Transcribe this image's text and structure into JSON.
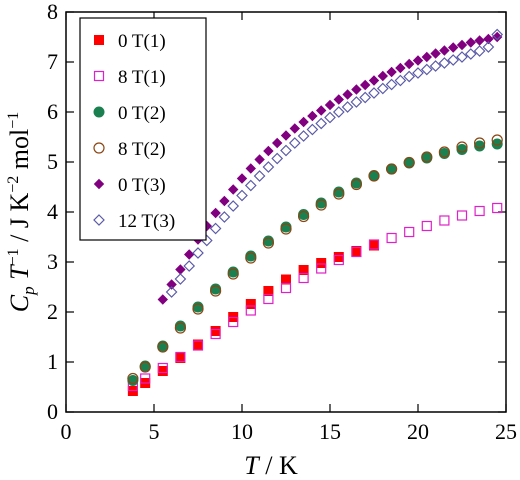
{
  "chart_data": {
    "type": "scatter",
    "xlabel": "T / K",
    "ylabel": "C_p T^-1 / J K^-2 mol^-1",
    "xlim": [
      0,
      25
    ],
    "ylim": [
      0,
      8
    ],
    "xticks": [
      0,
      5,
      10,
      15,
      20,
      25
    ],
    "yticks": [
      0,
      1,
      2,
      3,
      4,
      5,
      6,
      7,
      8
    ],
    "grid": false,
    "legend_position": "top-left",
    "series": [
      {
        "name": "0 T(1)",
        "marker": "filled-square",
        "color": "#ff0000",
        "points": [
          [
            3.8,
            0.42
          ],
          [
            4.5,
            0.58
          ],
          [
            5.5,
            0.82
          ],
          [
            6.5,
            1.08
          ],
          [
            7.5,
            1.35
          ],
          [
            8.5,
            1.62
          ],
          [
            9.5,
            1.9
          ],
          [
            10.5,
            2.16
          ],
          [
            11.5,
            2.42
          ],
          [
            12.5,
            2.65
          ],
          [
            13.5,
            2.84
          ],
          [
            14.5,
            2.98
          ],
          [
            15.5,
            3.1
          ],
          [
            16.5,
            3.22
          ],
          [
            17.5,
            3.33
          ]
        ]
      },
      {
        "name": "8 T(1)",
        "marker": "open-square",
        "color": "#e020c8",
        "points": [
          [
            3.8,
            0.52
          ],
          [
            4.5,
            0.67
          ],
          [
            5.5,
            0.88
          ],
          [
            6.5,
            1.1
          ],
          [
            7.5,
            1.33
          ],
          [
            8.5,
            1.56
          ],
          [
            9.5,
            1.8
          ],
          [
            10.5,
            2.03
          ],
          [
            11.5,
            2.26
          ],
          [
            12.5,
            2.48
          ],
          [
            13.5,
            2.68
          ],
          [
            14.5,
            2.87
          ],
          [
            15.5,
            3.04
          ],
          [
            16.5,
            3.2
          ],
          [
            17.5,
            3.35
          ],
          [
            18.5,
            3.48
          ],
          [
            19.5,
            3.6
          ],
          [
            20.5,
            3.72
          ],
          [
            21.5,
            3.83
          ],
          [
            22.5,
            3.93
          ],
          [
            23.5,
            4.02
          ],
          [
            24.5,
            4.08
          ]
        ]
      },
      {
        "name": "0 T(2)",
        "marker": "filled-circle",
        "color": "#1a8050",
        "points": [
          [
            3.8,
            0.63
          ],
          [
            4.5,
            0.92
          ],
          [
            5.5,
            1.32
          ],
          [
            6.5,
            1.72
          ],
          [
            7.5,
            2.1
          ],
          [
            8.5,
            2.46
          ],
          [
            9.5,
            2.8
          ],
          [
            10.5,
            3.12
          ],
          [
            11.5,
            3.42
          ],
          [
            12.5,
            3.7
          ],
          [
            13.5,
            3.95
          ],
          [
            14.5,
            4.18
          ],
          [
            15.5,
            4.4
          ],
          [
            16.5,
            4.58
          ],
          [
            17.5,
            4.73
          ],
          [
            18.5,
            4.86
          ],
          [
            19.5,
            4.98
          ],
          [
            20.5,
            5.08
          ],
          [
            21.5,
            5.17
          ],
          [
            22.5,
            5.25
          ],
          [
            23.5,
            5.32
          ],
          [
            24.5,
            5.36
          ]
        ]
      },
      {
        "name": "8 T(2)",
        "marker": "open-circle",
        "color": "#8b4513",
        "points": [
          [
            3.8,
            0.67
          ],
          [
            4.5,
            0.9
          ],
          [
            5.5,
            1.3
          ],
          [
            6.5,
            1.68
          ],
          [
            7.5,
            2.06
          ],
          [
            8.5,
            2.42
          ],
          [
            9.5,
            2.76
          ],
          [
            10.5,
            3.08
          ],
          [
            11.5,
            3.38
          ],
          [
            12.5,
            3.66
          ],
          [
            13.5,
            3.91
          ],
          [
            14.5,
            4.14
          ],
          [
            15.5,
            4.36
          ],
          [
            16.5,
            4.55
          ],
          [
            17.5,
            4.72
          ],
          [
            18.5,
            4.86
          ],
          [
            19.5,
            4.99
          ],
          [
            20.5,
            5.1
          ],
          [
            21.5,
            5.2
          ],
          [
            22.5,
            5.3
          ],
          [
            23.5,
            5.38
          ],
          [
            24.5,
            5.44
          ]
        ]
      },
      {
        "name": "0 T(3)",
        "marker": "filled-diamond",
        "color": "#800080",
        "points": [
          [
            5.5,
            2.25
          ],
          [
            6.0,
            2.55
          ],
          [
            6.5,
            2.85
          ],
          [
            7.0,
            3.15
          ],
          [
            7.5,
            3.45
          ],
          [
            8.0,
            3.72
          ],
          [
            8.5,
            3.98
          ],
          [
            9.0,
            4.22
          ],
          [
            9.5,
            4.45
          ],
          [
            10.0,
            4.67
          ],
          [
            10.5,
            4.87
          ],
          [
            11.0,
            5.05
          ],
          [
            11.5,
            5.22
          ],
          [
            12.0,
            5.38
          ],
          [
            12.5,
            5.53
          ],
          [
            13.0,
            5.67
          ],
          [
            13.5,
            5.8
          ],
          [
            14.0,
            5.92
          ],
          [
            14.5,
            6.03
          ],
          [
            15.0,
            6.14
          ],
          [
            15.5,
            6.25
          ],
          [
            16.0,
            6.35
          ],
          [
            16.5,
            6.45
          ],
          [
            17.0,
            6.54
          ],
          [
            17.5,
            6.63
          ],
          [
            18.0,
            6.72
          ],
          [
            18.5,
            6.8
          ],
          [
            19.0,
            6.88
          ],
          [
            19.5,
            6.96
          ],
          [
            20.0,
            7.03
          ],
          [
            20.5,
            7.1
          ],
          [
            21.0,
            7.17
          ],
          [
            21.5,
            7.23
          ],
          [
            22.0,
            7.29
          ],
          [
            22.5,
            7.34
          ],
          [
            23.0,
            7.39
          ],
          [
            23.5,
            7.43
          ],
          [
            24.0,
            7.46
          ],
          [
            24.5,
            7.5
          ]
        ]
      },
      {
        "name": "12 T(3)",
        "marker": "open-diamond",
        "color": "#5a5aa8",
        "points": [
          [
            6.0,
            2.4
          ],
          [
            6.5,
            2.66
          ],
          [
            7.0,
            2.92
          ],
          [
            7.5,
            3.18
          ],
          [
            8.0,
            3.43
          ],
          [
            8.5,
            3.67
          ],
          [
            9.0,
            3.9
          ],
          [
            9.5,
            4.12
          ],
          [
            10.0,
            4.33
          ],
          [
            10.5,
            4.53
          ],
          [
            11.0,
            4.72
          ],
          [
            11.5,
            4.9
          ],
          [
            12.0,
            5.07
          ],
          [
            12.5,
            5.23
          ],
          [
            13.0,
            5.38
          ],
          [
            13.5,
            5.52
          ],
          [
            14.0,
            5.65
          ],
          [
            14.5,
            5.77
          ],
          [
            15.0,
            5.89
          ],
          [
            15.5,
            6.0
          ],
          [
            16.0,
            6.1
          ],
          [
            16.5,
            6.2
          ],
          [
            17.0,
            6.29
          ],
          [
            17.5,
            6.38
          ],
          [
            18.0,
            6.47
          ],
          [
            18.5,
            6.55
          ],
          [
            19.0,
            6.63
          ],
          [
            19.5,
            6.71
          ],
          [
            20.0,
            6.78
          ],
          [
            20.5,
            6.85
          ],
          [
            21.0,
            6.92
          ],
          [
            21.5,
            6.98
          ],
          [
            22.0,
            7.04
          ],
          [
            22.5,
            7.1
          ],
          [
            23.0,
            7.16
          ],
          [
            23.5,
            7.22
          ],
          [
            24.0,
            7.3
          ],
          [
            24.5,
            7.55
          ]
        ]
      }
    ]
  }
}
